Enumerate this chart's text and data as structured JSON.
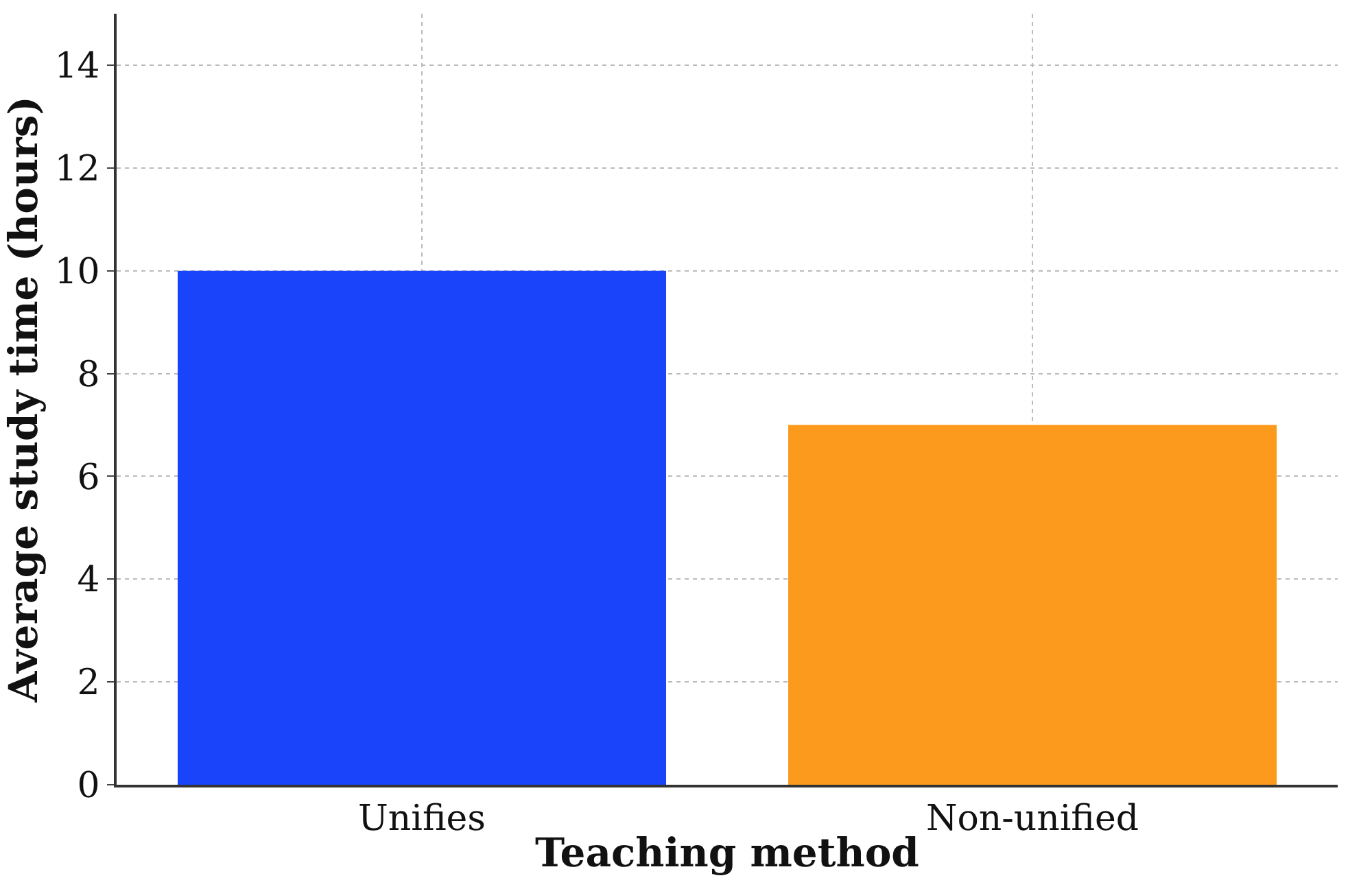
{
  "chart_data": {
    "type": "bar",
    "xlabel": "Teaching method",
    "ylabel": "Average study time (hours)",
    "categories": [
      "Unifies",
      "Non-unified"
    ],
    "values": [
      10,
      7
    ],
    "colors": [
      "#1a44fa",
      "#fb9a1c"
    ],
    "ylim": [
      0,
      15
    ],
    "yticks": [
      0,
      2,
      4,
      6,
      8,
      10,
      12,
      14
    ],
    "grid": true
  }
}
